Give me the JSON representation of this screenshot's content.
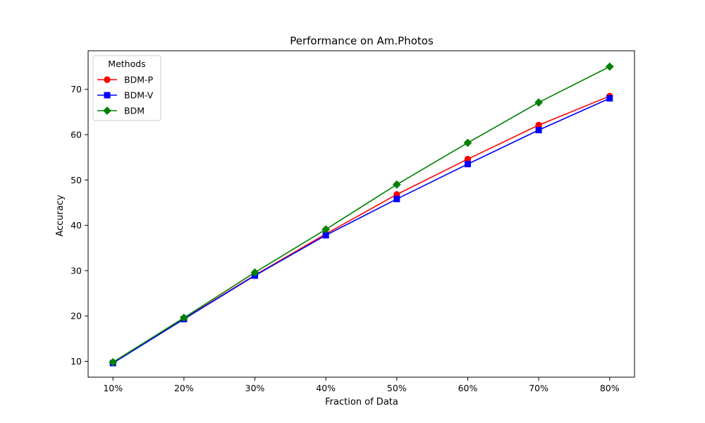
{
  "chart_data": {
    "type": "line",
    "title": "Performance on Am.Photos",
    "xlabel": "Fraction of Data",
    "ylabel": "Accuracy",
    "categories": [
      "10%",
      "20%",
      "30%",
      "40%",
      "50%",
      "60%",
      "70%",
      "80%"
    ],
    "x": [
      10,
      20,
      30,
      40,
      50,
      60,
      70,
      80
    ],
    "xlim": [
      6.5,
      83.5
    ],
    "ylim": [
      6.5,
      78.5
    ],
    "yticks": [
      10,
      20,
      30,
      40,
      50,
      60,
      70
    ],
    "legend": {
      "title": "Methods",
      "placement": "top-left"
    },
    "grid": false,
    "series": [
      {
        "name": "BDM-P",
        "color": "#ff0000",
        "marker": "circle",
        "values": [
          9.7,
          19.4,
          29.0,
          38.1,
          46.8,
          54.6,
          62.1,
          68.5
        ]
      },
      {
        "name": "BDM-V",
        "color": "#0000ff",
        "marker": "square",
        "values": [
          9.6,
          19.3,
          28.9,
          37.8,
          45.8,
          53.5,
          61.0,
          68.0
        ]
      },
      {
        "name": "BDM",
        "color": "#008000",
        "marker": "diamond",
        "values": [
          9.8,
          19.6,
          29.6,
          39.1,
          49.0,
          58.2,
          67.1,
          75.0
        ]
      }
    ]
  }
}
